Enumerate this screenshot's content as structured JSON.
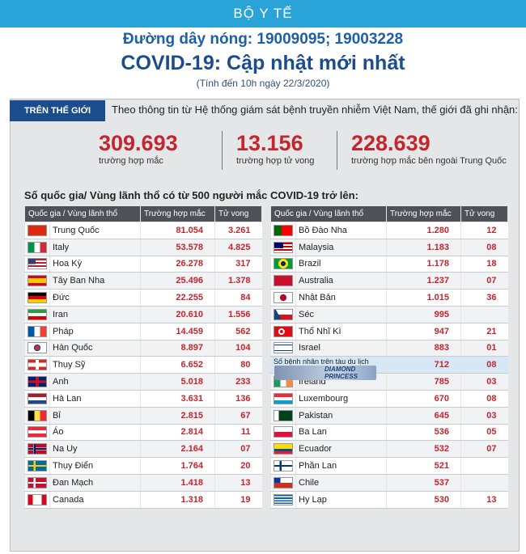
{
  "header": {
    "ministry": "BỘ Y TẾ",
    "hotline": "Đường dây nóng: 19009095; 19003228",
    "title": "COVID-19: Cập nhật mới nhất",
    "as_of": "(Tính đến 10h ngày 22/3/2020)"
  },
  "world": {
    "tag": "TRÊN THẾ GIỚI",
    "intro": "Theo thông tin từ Hệ thống giám sát bệnh truyền nhiễm Việt Nam, thế giới đã ghi nhận:",
    "stats": [
      {
        "value": "309.693",
        "label": "trường hợp mắc"
      },
      {
        "value": "13.156",
        "label": "trường hợp tử vong"
      },
      {
        "value": "228.639",
        "label": "trường hợp mắc bên ngoài Trung Quốc"
      }
    ]
  },
  "section_heading": "Số quốc gia/ Vùng lãnh thổ có từ 500 người mắc COVID-19 trở lên:",
  "table_headers": {
    "country": "Quốc gia / Vùng lãnh thổ",
    "cases": "Trường hợp mắc",
    "deaths": "Tử vong"
  },
  "colors": {
    "accent_red": "#c4262e",
    "header_dark": "#4f5157",
    "brand_blue": "#1b4c8c",
    "ribbon": "#2aa4d8"
  },
  "left_table": [
    {
      "name": "Trung Quốc",
      "cases": "81.054",
      "deaths": "3.261",
      "flag": "china-flag-icon"
    },
    {
      "name": "Italy",
      "cases": "53.578",
      "deaths": "4.825",
      "flag": "italy-flag-icon"
    },
    {
      "name": "Hoa Kỳ",
      "cases": "26.278",
      "deaths": "317",
      "flag": "usa-flag-icon"
    },
    {
      "name": "Tây Ban Nha",
      "cases": "25.496",
      "deaths": "1.378",
      "flag": "spain-flag-icon"
    },
    {
      "name": "Đức",
      "cases": "22.255",
      "deaths": "84",
      "flag": "germany-flag-icon"
    },
    {
      "name": "Iran",
      "cases": "20.610",
      "deaths": "1.556",
      "flag": "iran-flag-icon"
    },
    {
      "name": "Pháp",
      "cases": "14.459",
      "deaths": "562",
      "flag": "france-flag-icon"
    },
    {
      "name": "Hàn Quốc",
      "cases": "8.897",
      "deaths": "104",
      "flag": "korea-flag-icon"
    },
    {
      "name": "Thụy Sỹ",
      "cases": "6.652",
      "deaths": "80",
      "flag": "switzerland-flag-icon"
    },
    {
      "name": "Anh",
      "cases": "5.018",
      "deaths": "233",
      "flag": "uk-flag-icon"
    },
    {
      "name": "Hà Lan",
      "cases": "3.631",
      "deaths": "136",
      "flag": "netherlands-flag-icon"
    },
    {
      "name": "Bỉ",
      "cases": "2.815",
      "deaths": "67",
      "flag": "belgium-flag-icon"
    },
    {
      "name": "Áo",
      "cases": "2.814",
      "deaths": "11",
      "flag": "austria-flag-icon"
    },
    {
      "name": "Na Uy",
      "cases": "2.164",
      "deaths": "07",
      "flag": "norway-flag-icon"
    },
    {
      "name": "Thụy Điển",
      "cases": "1.764",
      "deaths": "20",
      "flag": "sweden-flag-icon"
    },
    {
      "name": "Đan Mạch",
      "cases": "1.418",
      "deaths": "13",
      "flag": "denmark-flag-icon"
    },
    {
      "name": "Canada",
      "cases": "1.318",
      "deaths": "19",
      "flag": "canada-flag-icon"
    }
  ],
  "right_table": [
    {
      "name": "Bồ Đào Nha",
      "cases": "1.280",
      "deaths": "12",
      "flag": "portugal-flag-icon"
    },
    {
      "name": "Malaysia",
      "cases": "1.183",
      "deaths": "08",
      "flag": "malaysia-flag-icon"
    },
    {
      "name": "Brazil",
      "cases": "1.178",
      "deaths": "18",
      "flag": "brazil-flag-icon"
    },
    {
      "name": "Australia",
      "cases": "1.237",
      "deaths": "07",
      "flag": "australia-flag-icon"
    },
    {
      "name": "Nhật Bản",
      "cases": "1.015",
      "deaths": "36",
      "flag": "japan-flag-icon"
    },
    {
      "name": "Séc",
      "cases": "995",
      "deaths": "",
      "flag": "czech-flag-icon"
    },
    {
      "name": "Thổ Nhĩ Kì",
      "cases": "947",
      "deaths": "21",
      "flag": "turkey-flag-icon"
    },
    {
      "name": "Israel",
      "cases": "883",
      "deaths": "01",
      "flag": "israel-flag-icon"
    },
    {
      "name": "Số bệnh nhân trên tàu du lịch",
      "ship": "DIAMOND PRINCESS",
      "cases": "712",
      "deaths": "08",
      "flag": "cruise-ship-icon"
    },
    {
      "name": "Ireland",
      "cases": "785",
      "deaths": "03",
      "flag": "ireland-flag-icon"
    },
    {
      "name": "Luxembourg",
      "cases": "670",
      "deaths": "08",
      "flag": "luxembourg-flag-icon"
    },
    {
      "name": "Pakistan",
      "cases": "645",
      "deaths": "03",
      "flag": "pakistan-flag-icon"
    },
    {
      "name": "Ba Lan",
      "cases": "536",
      "deaths": "05",
      "flag": "poland-flag-icon"
    },
    {
      "name": "Ecuador",
      "cases": "532",
      "deaths": "07",
      "flag": "ecuador-flag-icon"
    },
    {
      "name": "Phần Lan",
      "cases": "521",
      "deaths": "",
      "flag": "finland-flag-icon"
    },
    {
      "name": "Chile",
      "cases": "537",
      "deaths": "",
      "flag": "chile-flag-icon"
    },
    {
      "name": "Hy Lạp",
      "cases": "530",
      "deaths": "13",
      "flag": "greece-flag-icon"
    }
  ]
}
